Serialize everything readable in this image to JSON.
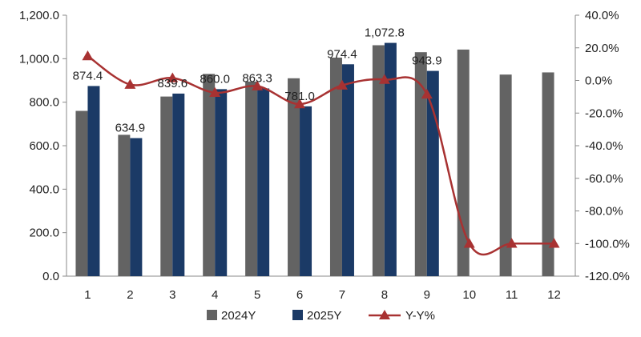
{
  "chart_data": {
    "type": "bar",
    "categories": [
      "1",
      "2",
      "3",
      "4",
      "5",
      "6",
      "7",
      "8",
      "9",
      "10",
      "11",
      "12"
    ],
    "series": [
      {
        "name": "2024Y",
        "kind": "bar",
        "axis": "left",
        "color": "#636363",
        "values": [
          760,
          650,
          826,
          930,
          895,
          910,
          1005,
          1062,
          1030,
          1042,
          927,
          937
        ]
      },
      {
        "name": "2025Y",
        "kind": "bar",
        "axis": "left",
        "color": "#1b3a66",
        "values": [
          874.4,
          634.9,
          839.6,
          860.0,
          863.3,
          781.0,
          974.4,
          1072.8,
          943.9,
          null,
          null,
          null
        ]
      },
      {
        "name": "Y-Y%",
        "kind": "line",
        "axis": "right",
        "color": "#a83232",
        "values": [
          15.0,
          -2.5,
          1.5,
          -7.5,
          -3.5,
          -14.5,
          -3.0,
          0.5,
          -8.5,
          -100,
          -100,
          -100
        ]
      }
    ],
    "data_labels": [
      "874.4",
      "634.9",
      "839.6",
      "860.0",
      "863.3",
      "781.0",
      "974.4",
      "1,072.8",
      "943.9"
    ],
    "left_axis": {
      "ylim": [
        0,
        1200
      ],
      "ticks": [
        "0.0",
        "200.0",
        "400.0",
        "600.0",
        "800.0",
        "1,000.0",
        "1,200.0"
      ]
    },
    "right_axis": {
      "ylim": [
        -120,
        40
      ],
      "ticks": [
        "-120.0%",
        "-100.0%",
        "-80.0%",
        "-60.0%",
        "-40.0%",
        "-20.0%",
        "0.0%",
        "20.0%",
        "40.0%"
      ]
    },
    "grid": false,
    "legend": {
      "position": "bottom",
      "entries": [
        "2024Y",
        "2025Y",
        "Y-Y%"
      ]
    }
  }
}
